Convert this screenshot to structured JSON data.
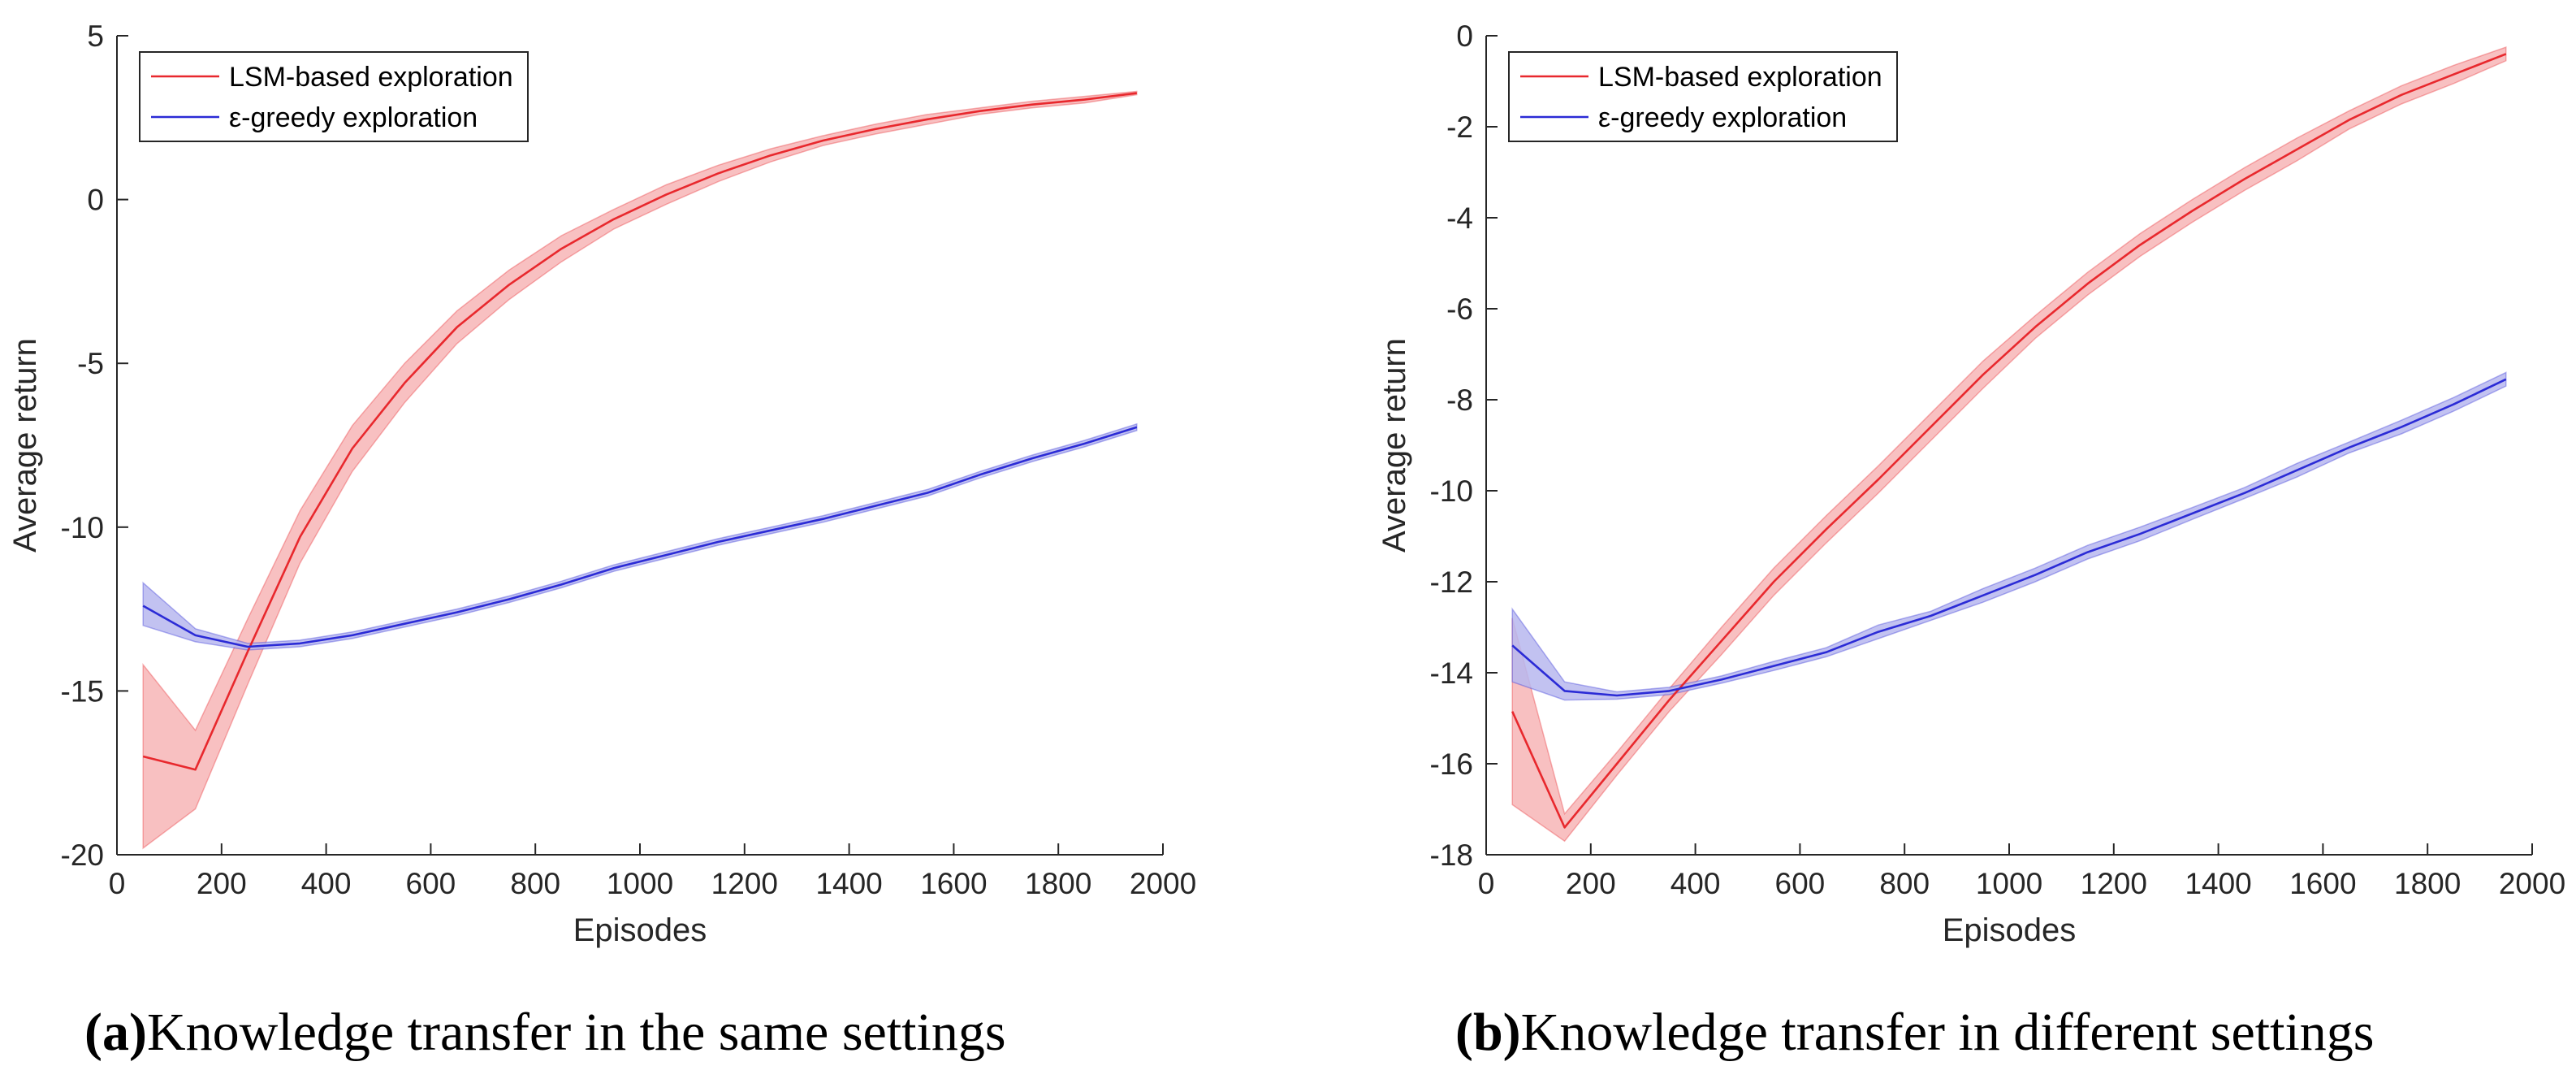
{
  "colors": {
    "lsm": "#e8282d",
    "lsm_band": "#f7b5b6",
    "egreedy": "#2b2bd6",
    "egreedy_band": "#b7b7ef",
    "axis": "#262626"
  },
  "chart_data": [
    {
      "id": "a",
      "type": "line",
      "title": "",
      "xlabel": "Episodes",
      "ylabel": "Average return",
      "xlim": [
        0,
        2000
      ],
      "ylim": [
        -20,
        5
      ],
      "xticks": [
        0,
        200,
        400,
        600,
        800,
        1000,
        1200,
        1400,
        1600,
        1800,
        2000
      ],
      "xtick_labels": [
        "0",
        "200",
        "400",
        "600",
        "800",
        "1000",
        "1200",
        "1400",
        "1600",
        "1800",
        "2000"
      ],
      "yticks": [
        -20,
        -15,
        -10,
        -5,
        0,
        5
      ],
      "ytick_labels": [
        "-20",
        "-15",
        "-10",
        "-5",
        "0",
        "5"
      ],
      "grid": false,
      "legend_position": "top-left",
      "caption": {
        "label": "(a)",
        "text": "Knowledge transfer in the same settings"
      },
      "x": [
        50,
        150,
        250,
        350,
        450,
        550,
        650,
        750,
        850,
        950,
        1050,
        1150,
        1250,
        1350,
        1450,
        1550,
        1650,
        1750,
        1850,
        1950
      ],
      "series": [
        {
          "name": "LSM-based exploration",
          "color_key": "lsm",
          "values": [
            -17.0,
            -17.4,
            -13.8,
            -10.3,
            -7.6,
            -5.6,
            -3.9,
            -2.6,
            -1.5,
            -0.6,
            0.15,
            0.8,
            1.35,
            1.8,
            2.15,
            2.45,
            2.7,
            2.9,
            3.05,
            3.25
          ],
          "upper": [
            -14.2,
            -16.2,
            -12.8,
            -9.5,
            -6.9,
            -5.0,
            -3.4,
            -2.15,
            -1.1,
            -0.3,
            0.45,
            1.05,
            1.55,
            1.95,
            2.3,
            2.6,
            2.8,
            3.0,
            3.15,
            3.3
          ],
          "lower": [
            -19.8,
            -18.6,
            -14.8,
            -11.1,
            -8.3,
            -6.2,
            -4.4,
            -3.05,
            -1.9,
            -0.9,
            -0.15,
            0.55,
            1.15,
            1.65,
            2.0,
            2.3,
            2.6,
            2.8,
            2.95,
            3.2
          ]
        },
        {
          "name": "ε-greedy exploration",
          "color_key": "egreedy",
          "values": [
            -12.4,
            -13.3,
            -13.65,
            -13.55,
            -13.3,
            -12.95,
            -12.6,
            -12.2,
            -11.75,
            -11.25,
            -10.85,
            -10.45,
            -10.1,
            -9.75,
            -9.35,
            -8.95,
            -8.4,
            -7.9,
            -7.45,
            -6.95
          ],
          "upper": [
            -11.7,
            -13.1,
            -13.55,
            -13.45,
            -13.2,
            -12.85,
            -12.5,
            -12.1,
            -11.65,
            -11.15,
            -10.75,
            -10.35,
            -10.0,
            -9.65,
            -9.25,
            -8.85,
            -8.3,
            -7.8,
            -7.35,
            -6.85
          ],
          "lower": [
            -13.0,
            -13.5,
            -13.75,
            -13.65,
            -13.4,
            -13.05,
            -12.7,
            -12.3,
            -11.85,
            -11.35,
            -10.95,
            -10.55,
            -10.2,
            -9.85,
            -9.45,
            -9.05,
            -8.5,
            -8.0,
            -7.55,
            -7.05
          ]
        }
      ]
    },
    {
      "id": "b",
      "type": "line",
      "title": "",
      "xlabel": "Episodes",
      "ylabel": "Average return",
      "xlim": [
        0,
        2000
      ],
      "ylim": [
        -18,
        0
      ],
      "xticks": [
        0,
        200,
        400,
        600,
        800,
        1000,
        1200,
        1400,
        1600,
        1800,
        2000
      ],
      "xtick_labels": [
        "0",
        "200",
        "400",
        "600",
        "800",
        "1000",
        "1200",
        "1400",
        "1600",
        "1800",
        "2000"
      ],
      "yticks": [
        -18,
        -16,
        -14,
        -12,
        -10,
        -8,
        -6,
        -4,
        -2,
        0
      ],
      "ytick_labels": [
        "-18",
        "-16",
        "-14",
        "-12",
        "-10",
        "-8",
        "-6",
        "-4",
        "-2",
        "0"
      ],
      "grid": false,
      "legend_position": "top-left",
      "caption": {
        "label": "(b)",
        "text": "Knowledge transfer in different settings"
      },
      "x": [
        50,
        150,
        250,
        350,
        450,
        550,
        650,
        750,
        850,
        950,
        1050,
        1150,
        1250,
        1350,
        1450,
        1550,
        1650,
        1750,
        1850,
        1950
      ],
      "series": [
        {
          "name": "LSM-based exploration",
          "color_key": "lsm",
          "values": [
            -14.85,
            -17.4,
            -16.0,
            -14.6,
            -13.3,
            -12.0,
            -10.85,
            -9.75,
            -8.6,
            -7.45,
            -6.4,
            -5.45,
            -4.6,
            -3.85,
            -3.15,
            -2.5,
            -1.85,
            -1.3,
            -0.85,
            -0.4
          ],
          "upper": [
            -12.8,
            -17.1,
            -15.75,
            -14.35,
            -13.0,
            -11.7,
            -10.55,
            -9.45,
            -8.3,
            -7.15,
            -6.15,
            -5.2,
            -4.35,
            -3.6,
            -2.9,
            -2.25,
            -1.65,
            -1.1,
            -0.65,
            -0.25
          ],
          "lower": [
            -16.9,
            -17.7,
            -16.25,
            -14.85,
            -13.6,
            -12.3,
            -11.15,
            -10.05,
            -8.9,
            -7.75,
            -6.65,
            -5.7,
            -4.85,
            -4.1,
            -3.4,
            -2.75,
            -2.05,
            -1.5,
            -1.05,
            -0.55
          ]
        },
        {
          "name": "ε-greedy exploration",
          "color_key": "egreedy",
          "values": [
            -13.4,
            -14.4,
            -14.5,
            -14.4,
            -14.15,
            -13.85,
            -13.55,
            -13.1,
            -12.75,
            -12.3,
            -11.85,
            -11.35,
            -10.95,
            -10.5,
            -10.05,
            -9.55,
            -9.05,
            -8.6,
            -8.1,
            -7.55
          ],
          "upper": [
            -12.6,
            -14.2,
            -14.42,
            -14.32,
            -14.07,
            -13.75,
            -13.45,
            -12.95,
            -12.65,
            -12.15,
            -11.7,
            -11.2,
            -10.8,
            -10.37,
            -9.93,
            -9.4,
            -8.93,
            -8.45,
            -7.95,
            -7.4
          ],
          "lower": [
            -14.2,
            -14.6,
            -14.58,
            -14.48,
            -14.23,
            -13.95,
            -13.65,
            -13.25,
            -12.85,
            -12.45,
            -12.0,
            -11.5,
            -11.1,
            -10.63,
            -10.17,
            -9.7,
            -9.17,
            -8.75,
            -8.25,
            -7.7
          ]
        }
      ]
    }
  ]
}
